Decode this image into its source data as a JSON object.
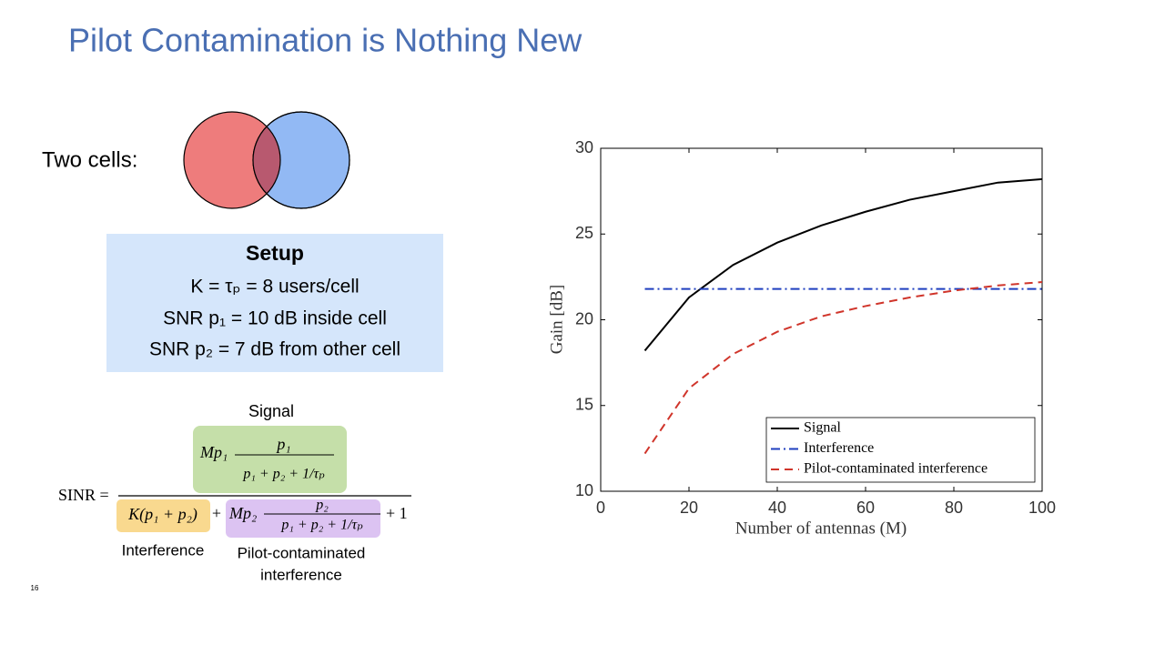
{
  "slide": {
    "title": "Pilot Contamination is Nothing New",
    "cells_label": "Two cells:",
    "setup": {
      "heading": "Setup",
      "lines": [
        "K = τₚ = 8 users/cell",
        "SNR p₁ = 10 dB inside cell",
        "SNR p₂ = 7 dB from other cell"
      ]
    },
    "formula": {
      "signal_label": "Signal",
      "lhs": "SINR =",
      "signal_lead": "Mp₁",
      "signal_frac_num": "p₁",
      "signal_frac_den": "p₁ + p₂ + 1/τₚ",
      "interference_term": "K(p₁ + p₂)",
      "plus": "+",
      "pilot_lead": "Mp₂",
      "pilot_frac_num": "p₂",
      "pilot_frac_den": "p₁ + p₂ + 1/τₚ",
      "tail": "+ 1",
      "interference_label": "Interference",
      "pilot_label_1": "Pilot-contaminated",
      "pilot_label_2": "interference"
    },
    "page_number": "16"
  },
  "chart_data": {
    "type": "line",
    "xlabel": "Number of antennas (M)",
    "ylabel": "Gain [dB]",
    "x": [
      10,
      20,
      30,
      40,
      50,
      60,
      70,
      80,
      90,
      100
    ],
    "series": [
      {
        "name": "Signal",
        "color": "#000000",
        "linestyle": "solid",
        "values": [
          18.2,
          21.3,
          23.2,
          24.5,
          25.5,
          26.3,
          27.0,
          27.5,
          28.0,
          28.2
        ]
      },
      {
        "name": "Interference",
        "color": "#1f3fbf",
        "linestyle": "dashdot",
        "values": [
          21.8,
          21.8,
          21.8,
          21.8,
          21.8,
          21.8,
          21.8,
          21.8,
          21.8,
          21.8
        ]
      },
      {
        "name": "Pilot-contaminated interference",
        "color": "#d0352b",
        "linestyle": "dashed",
        "values": [
          12.2,
          16.0,
          18.0,
          19.3,
          20.2,
          20.8,
          21.3,
          21.7,
          22.0,
          22.2
        ]
      }
    ],
    "xlim": [
      0,
      100
    ],
    "ylim": [
      10,
      30
    ],
    "xticks": [
      0,
      20,
      40,
      60,
      80,
      100
    ],
    "yticks": [
      10,
      15,
      20,
      25,
      30
    ],
    "grid": false,
    "legend": "lower right"
  }
}
